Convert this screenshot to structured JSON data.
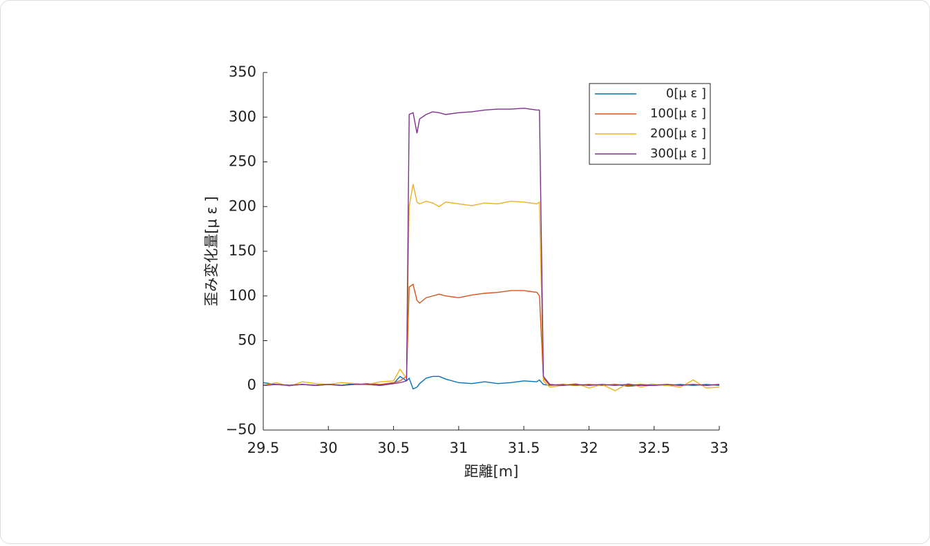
{
  "chart_data": {
    "type": "line",
    "xlabel": "距離[m]",
    "ylabel": "歪み変化量[μ ε ]",
    "x": [
      29.5,
      29.6,
      29.7,
      29.8,
      29.9,
      30.0,
      30.1,
      30.2,
      30.3,
      30.4,
      30.5,
      30.55,
      30.6,
      30.62,
      30.65,
      30.68,
      30.7,
      30.75,
      30.8,
      30.85,
      30.9,
      31.0,
      31.1,
      31.2,
      31.3,
      31.4,
      31.5,
      31.6,
      31.62,
      31.65,
      31.7,
      31.8,
      31.9,
      32.0,
      32.1,
      32.2,
      32.3,
      32.4,
      32.5,
      32.6,
      32.7,
      32.8,
      32.9,
      33.0
    ],
    "series": [
      {
        "name": "0[μ ε ]",
        "color": "#0072bd",
        "values": [
          3,
          1,
          0,
          1,
          0,
          1,
          0,
          2,
          1,
          0,
          2,
          10,
          5,
          8,
          -4,
          -2,
          2,
          8,
          10,
          10,
          7,
          3,
          2,
          4,
          2,
          3,
          5,
          4,
          6,
          1,
          0,
          1,
          0,
          1,
          0,
          1,
          -1,
          0,
          1,
          0,
          1,
          0,
          1,
          0
        ]
      },
      {
        "name": "100[μ ε ]",
        "color": "#d95319",
        "values": [
          0,
          1,
          0,
          1,
          0,
          1,
          0,
          1,
          2,
          1,
          3,
          5,
          10,
          110,
          113,
          95,
          92,
          98,
          100,
          102,
          100,
          98,
          101,
          103,
          104,
          106,
          106,
          104,
          100,
          8,
          0,
          1,
          0,
          1,
          0,
          1,
          0,
          1,
          0,
          1,
          0,
          1,
          0,
          1
        ]
      },
      {
        "name": "200[μ ε ]",
        "color": "#edb120",
        "values": [
          0,
          3,
          -1,
          4,
          2,
          1,
          3,
          2,
          1,
          4,
          5,
          18,
          8,
          200,
          225,
          205,
          203,
          206,
          204,
          200,
          205,
          203,
          201,
          204,
          203,
          206,
          205,
          203,
          205,
          5,
          -2,
          0,
          2,
          -3,
          1,
          -6,
          2,
          -2,
          1,
          0,
          -2,
          6,
          -3,
          -2
        ]
      },
      {
        "name": "300[μ ε ]",
        "color": "#7e2f8e",
        "values": [
          0,
          1,
          0,
          1,
          0,
          1,
          0,
          1,
          1,
          0,
          2,
          3,
          5,
          303,
          305,
          282,
          298,
          303,
          306,
          305,
          303,
          305,
          306,
          308,
          309,
          309,
          310,
          308,
          308,
          10,
          1,
          0,
          1,
          0,
          1,
          0,
          1,
          0,
          0,
          1,
          0,
          1,
          0,
          1
        ]
      }
    ],
    "xlim": [
      29.5,
      33
    ],
    "xticks": [
      29.5,
      30,
      30.5,
      31,
      31.5,
      32,
      32.5,
      33
    ],
    "ylim": [
      -50,
      350
    ],
    "yticks": [
      {
        "value": -50,
        "label": "−50"
      },
      0,
      50,
      100,
      150,
      200,
      250,
      300,
      350
    ],
    "legend": "upper right"
  }
}
